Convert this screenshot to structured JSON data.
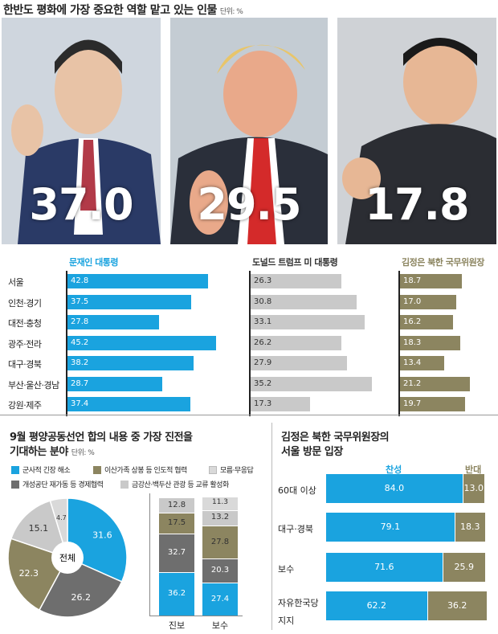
{
  "header": {
    "title": "한반도 평화에 가장 중요한 역할 맡고 있는 인물",
    "unit": "단위: %"
  },
  "photos": [
    {
      "value": "37.0",
      "name": "moon-photo"
    },
    {
      "value": "29.5",
      "name": "trump-photo"
    },
    {
      "value": "17.8",
      "name": "kim-photo"
    }
  ],
  "colors": {
    "blue": "#1aa3df",
    "gray": "#c9c9c9",
    "olive": "#8c8560",
    "darkgray": "#6e6e6e",
    "lightgray": "#d9d9d9"
  },
  "chart_data": [
    {
      "type": "bar",
      "title": "한반도 평화에 가장 중요한 역할 맡고 있는 인물",
      "unit": "단위: %",
      "categories": [
        "서울",
        "인천·경기",
        "대전·충청",
        "광주·전라",
        "대구·경북",
        "부산·울산·경남",
        "강원·제주"
      ],
      "series": [
        {
          "name": "문재인 대통령",
          "values": [
            42.8,
            37.5,
            27.8,
            45.2,
            38.2,
            28.7,
            37.4
          ]
        },
        {
          "name": "도널드 트럼프 미 대통령",
          "values": [
            26.3,
            30.8,
            33.1,
            26.2,
            27.9,
            35.2,
            17.3
          ]
        },
        {
          "name": "김정은 북한 국무위원장",
          "values": [
            18.7,
            17.0,
            16.2,
            18.3,
            13.4,
            21.2,
            19.7
          ]
        }
      ]
    },
    {
      "type": "pie",
      "title": "9월 평양공동선언 합의 내용 중 가장 진전을 기대하는 분야",
      "unit": "단위: %",
      "center_label": "전체",
      "slices": [
        {
          "name": "군사적 긴장 해소",
          "value": 31.6
        },
        {
          "name": "개성공단 재가동 등 경제협력",
          "value": 26.2
        },
        {
          "name": "이산가족 상봉 등 인도적 협력",
          "value": 22.3
        },
        {
          "name": "금강산·백두산 관광 등 교류 활성화",
          "value": 15.1
        },
        {
          "name": "모름·무응답",
          "value": 4.7
        }
      ]
    },
    {
      "type": "bar",
      "stacked": true,
      "categories": [
        "진보",
        "보수"
      ],
      "series": [
        {
          "name": "군사적 긴장 해소",
          "values": [
            36.2,
            27.4
          ]
        },
        {
          "name": "개성공단 재가동 등 경제협력",
          "values": [
            32.7,
            20.3
          ]
        },
        {
          "name": "이산가족 상봉 등 인도적 협력",
          "values": [
            17.5,
            27.8
          ]
        },
        {
          "name": "금강산·백두산 관광 등 교류 활성화",
          "values": [
            12.8,
            13.2
          ]
        },
        {
          "name": "모름·무응답",
          "values": [
            null,
            11.3
          ]
        }
      ]
    },
    {
      "type": "bar",
      "stacked": true,
      "orientation": "horizontal",
      "title": "김정은 북한 국무위원장의 서울 방문 입장",
      "categories": [
        "60대 이상",
        "대구·경북",
        "보수",
        "자유한국당 지지"
      ],
      "series": [
        {
          "name": "찬성",
          "values": [
            84.0,
            79.1,
            71.6,
            62.2
          ]
        },
        {
          "name": "반대",
          "values": [
            13.0,
            18.3,
            25.9,
            36.2
          ]
        }
      ]
    }
  ],
  "labels": {
    "regions": [
      "서울",
      "인천·경기",
      "대전·충청",
      "광주·전라",
      "대구·경북",
      "부산·울산·경남",
      "강원·제주"
    ],
    "col1": "문재인 대통령",
    "col2": "도널드 트럼프 미 대통령",
    "col3": "김정은 북한 국무위원장",
    "v1": [
      "42.8",
      "37.5",
      "27.8",
      "45.2",
      "38.2",
      "28.7",
      "37.4"
    ],
    "v2": [
      "26.3",
      "30.8",
      "33.1",
      "26.2",
      "27.9",
      "35.2",
      "17.3"
    ],
    "v3": [
      "18.7",
      "17.0",
      "16.2",
      "18.3",
      "13.4",
      "21.2",
      "19.7"
    ],
    "s2_title_line1": "9월 평양공동선언 합의 내용 중 가장 진전을",
    "s2_title_line2": "기대하는 분야",
    "s2_unit": "단위: %",
    "legend": [
      "군사적 긴장 해소",
      "이산가족 상봉 등 인도적 협력",
      "모름·무응답",
      "개성공단 재가동 등 경제협력",
      "금강산·백두산 관광 등 교류 활성화"
    ],
    "pie_center": "전체",
    "pie_vals": [
      "31.6",
      "26.2",
      "22.3",
      "15.1",
      "4.7"
    ],
    "stack_cats": [
      "진보",
      "보수"
    ],
    "stack1": [
      "12.8",
      "17.5",
      "32.7",
      "36.2"
    ],
    "stack2": [
      "11.3",
      "13.2",
      "27.8",
      "20.3",
      "27.4"
    ],
    "s3_title_line1": "김정은 북한 국무위원장의",
    "s3_title_line2": "서울 방문 입장",
    "s3_yes": "찬성",
    "s3_no": "반대",
    "s3_cats": [
      "60대 이상",
      "대구·경북",
      "보수",
      "자유한국당"
    ],
    "s3_cat4b": "지지",
    "s3_yes_vals": [
      "84.0",
      "79.1",
      "71.6",
      "62.2"
    ],
    "s3_no_vals": [
      "13.0",
      "18.3",
      "25.9",
      "36.2"
    ]
  }
}
